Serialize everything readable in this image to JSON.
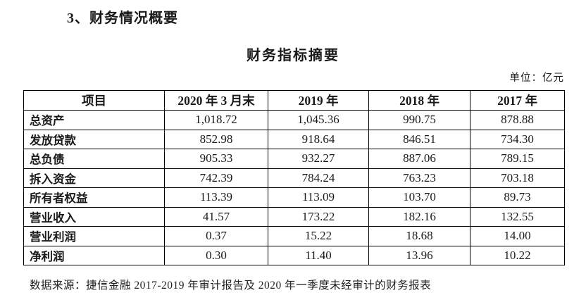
{
  "page": {
    "section_heading": "3、财务情况概要",
    "table_title": "财务指标摘要",
    "unit_label": "单位：亿元",
    "source_note": "数据来源：捷信金融 2017-2019 年审计报告及 2020 年一季度未经审计的财务报表"
  },
  "table": {
    "headers": [
      "项目",
      "2020 年 3 月末",
      "2019 年",
      "2018 年",
      "2017 年"
    ],
    "rows": [
      {
        "label": "总资产",
        "values": [
          "1,018.72",
          "1,045.36",
          "990.75",
          "878.88"
        ]
      },
      {
        "label": "发放贷款",
        "values": [
          "852.98",
          "918.64",
          "846.51",
          "734.30"
        ]
      },
      {
        "label": "总负债",
        "values": [
          "905.33",
          "932.27",
          "887.06",
          "789.15"
        ]
      },
      {
        "label": "拆入资金",
        "values": [
          "742.39",
          "784.24",
          "763.23",
          "703.18"
        ]
      },
      {
        "label": "所有者权益",
        "values": [
          "113.39",
          "113.09",
          "103.70",
          "89.73"
        ]
      },
      {
        "label": "营业收入",
        "values": [
          "41.57",
          "173.22",
          "182.16",
          "132.55"
        ]
      },
      {
        "label": "营业利润",
        "values": [
          "0.37",
          "15.22",
          "18.68",
          "14.00"
        ]
      },
      {
        "label": "净利润",
        "values": [
          "0.30",
          "11.40",
          "13.96",
          "10.22"
        ]
      }
    ]
  },
  "colors": {
    "text": "#1a1a1a",
    "border": "#000000",
    "background": "#ffffff"
  }
}
